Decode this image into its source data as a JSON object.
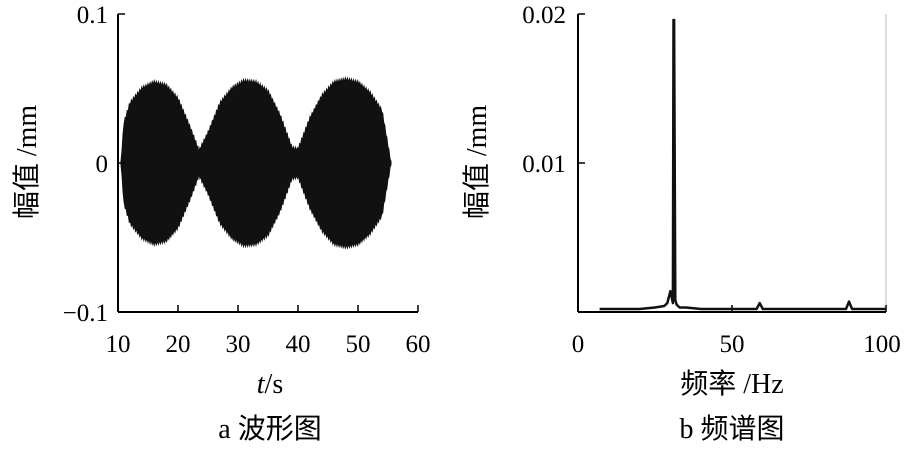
{
  "chart_data": [
    {
      "type": "line",
      "caption": "a 波形图",
      "xlabel_var": "t",
      "xlabel_unit": "/s",
      "ylabel": "幅值 /mm",
      "xlim": [
        10,
        60
      ],
      "ylim": [
        -0.1,
        0.1
      ],
      "xticks": [
        "10",
        "20",
        "30",
        "40",
        "50",
        "60"
      ],
      "yticks": [
        "0.1",
        "0",
        "−0.1"
      ],
      "xtick_values": [
        10,
        20,
        30,
        40,
        50,
        60
      ],
      "ytick_values": [
        0.1,
        0,
        -0.1
      ],
      "signal": {
        "x_start": 10.5,
        "x_end": 55.5,
        "envelope": [
          [
            10.5,
            0.0
          ],
          [
            11,
            0.027
          ],
          [
            12,
            0.04
          ],
          [
            14,
            0.05
          ],
          [
            16,
            0.054
          ],
          [
            18,
            0.052
          ],
          [
            20,
            0.043
          ],
          [
            22,
            0.024
          ],
          [
            23.5,
            0.008
          ],
          [
            25,
            0.02
          ],
          [
            27,
            0.04
          ],
          [
            29,
            0.05
          ],
          [
            31,
            0.055
          ],
          [
            33,
            0.054
          ],
          [
            35,
            0.048
          ],
          [
            37,
            0.032
          ],
          [
            39,
            0.01
          ],
          [
            40,
            0.009
          ],
          [
            42,
            0.03
          ],
          [
            44,
            0.045
          ],
          [
            46,
            0.054
          ],
          [
            48,
            0.056
          ],
          [
            50,
            0.054
          ],
          [
            52,
            0.047
          ],
          [
            54,
            0.035
          ],
          [
            55.5,
            0.0
          ]
        ]
      }
    },
    {
      "type": "line",
      "caption": "b 频谱图",
      "xlabel": "频率 /Hz",
      "ylabel": "幅值 /mm",
      "xlim": [
        0,
        100
      ],
      "ylim": [
        0,
        0.02
      ],
      "xticks": [
        "0",
        "50",
        "100"
      ],
      "yticks": [
        "0.02",
        "0.01"
      ],
      "xtick_values": [
        0,
        50,
        100
      ],
      "ytick_values": [
        0.02,
        0.01
      ],
      "series": [
        {
          "x": [
            7,
            10,
            15,
            20,
            25,
            28,
            29,
            30,
            30.8,
            31,
            31.2,
            31.6,
            32,
            33,
            35,
            40,
            45,
            50,
            55,
            58,
            59,
            60,
            62,
            65,
            70,
            75,
            80,
            85,
            87,
            88,
            89,
            92,
            95,
            100
          ],
          "y": [
            0.0002,
            0.0002,
            0.0002,
            0.0002,
            0.0003,
            0.0004,
            0.0006,
            0.0014,
            0.0006,
            0.0196,
            0.0196,
            0.0008,
            0.0005,
            0.0003,
            0.0003,
            0.0002,
            0.0002,
            0.0002,
            0.0002,
            0.0002,
            0.0006,
            0.0002,
            0.0002,
            0.0002,
            0.0002,
            0.0002,
            0.0002,
            0.0002,
            0.0002,
            0.0007,
            0.0002,
            0.0002,
            0.0002,
            0.0002
          ]
        }
      ]
    }
  ]
}
